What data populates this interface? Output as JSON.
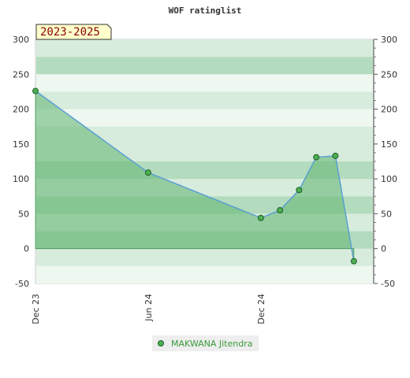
{
  "chart_data": {
    "type": "area",
    "title": "WOF ratinglist",
    "season_label": "2023-2025",
    "ylim": [
      -50,
      300
    ],
    "y_ticks": [
      -50,
      0,
      50,
      100,
      150,
      200,
      250,
      300
    ],
    "x_ticks": [
      "Dec 23",
      "Jun 24",
      "Dec 24"
    ],
    "grid": true,
    "legend_position": "bottom-center",
    "series": [
      {
        "name": "MAKWANA Jitendra",
        "color": "#5a9fd4",
        "fill": "#5fb56f",
        "points": [
          {
            "x": "2023-12",
            "y": 226
          },
          {
            "x": "2024-06",
            "y": 109
          },
          {
            "x": "2024-12",
            "y": 44
          },
          {
            "x": "2025-01",
            "y": 55
          },
          {
            "x": "2025-02",
            "y": 84
          },
          {
            "x": "2025-03",
            "y": 131
          },
          {
            "x": "2025-04",
            "y": 133
          },
          {
            "x": "2025-05",
            "y": -18
          }
        ]
      }
    ]
  },
  "colors": {
    "band_light": "#eef7f0",
    "band_mid": "#d7ecdc",
    "band_dark": "#b3dbbd",
    "marker_fill": "#4caf50",
    "marker_stroke": "#1e5e2a"
  }
}
